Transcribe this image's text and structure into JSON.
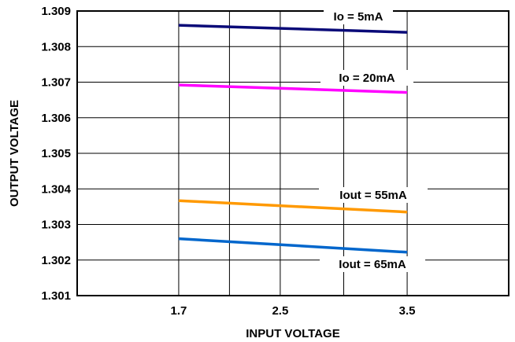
{
  "chart_data": {
    "type": "line",
    "title": "",
    "xlabel": "INPUT VOLTAGE",
    "ylabel": "OUTPUT VOLTAGE",
    "x_ticks": [
      "1.7",
      "2.5",
      "3.5"
    ],
    "y_ticks": [
      "1.301",
      "1.302",
      "1.303",
      "1.304",
      "1.305",
      "1.306",
      "1.307",
      "1.308",
      "1.309"
    ],
    "xlim": [
      0.9,
      4.3
    ],
    "ylim": [
      1.301,
      1.309
    ],
    "grid": true,
    "series": [
      {
        "name": "Io = 5mA",
        "color": "#0a0a78",
        "x": [
          1.7,
          3.5
        ],
        "y": [
          1.3086,
          1.3084
        ]
      },
      {
        "name": "Io = 20mA",
        "color": "#ff00ff",
        "x": [
          1.7,
          3.5
        ],
        "y": [
          1.30692,
          1.30671
        ]
      },
      {
        "name": "Iout = 55mA",
        "color": "#ff9900",
        "x": [
          1.7,
          3.5
        ],
        "y": [
          1.30367,
          1.30335
        ]
      },
      {
        "name": "Iout = 65mA",
        "color": "#0066cc",
        "x": [
          1.7,
          3.5
        ],
        "y": [
          1.3026,
          1.30222
        ]
      }
    ]
  }
}
